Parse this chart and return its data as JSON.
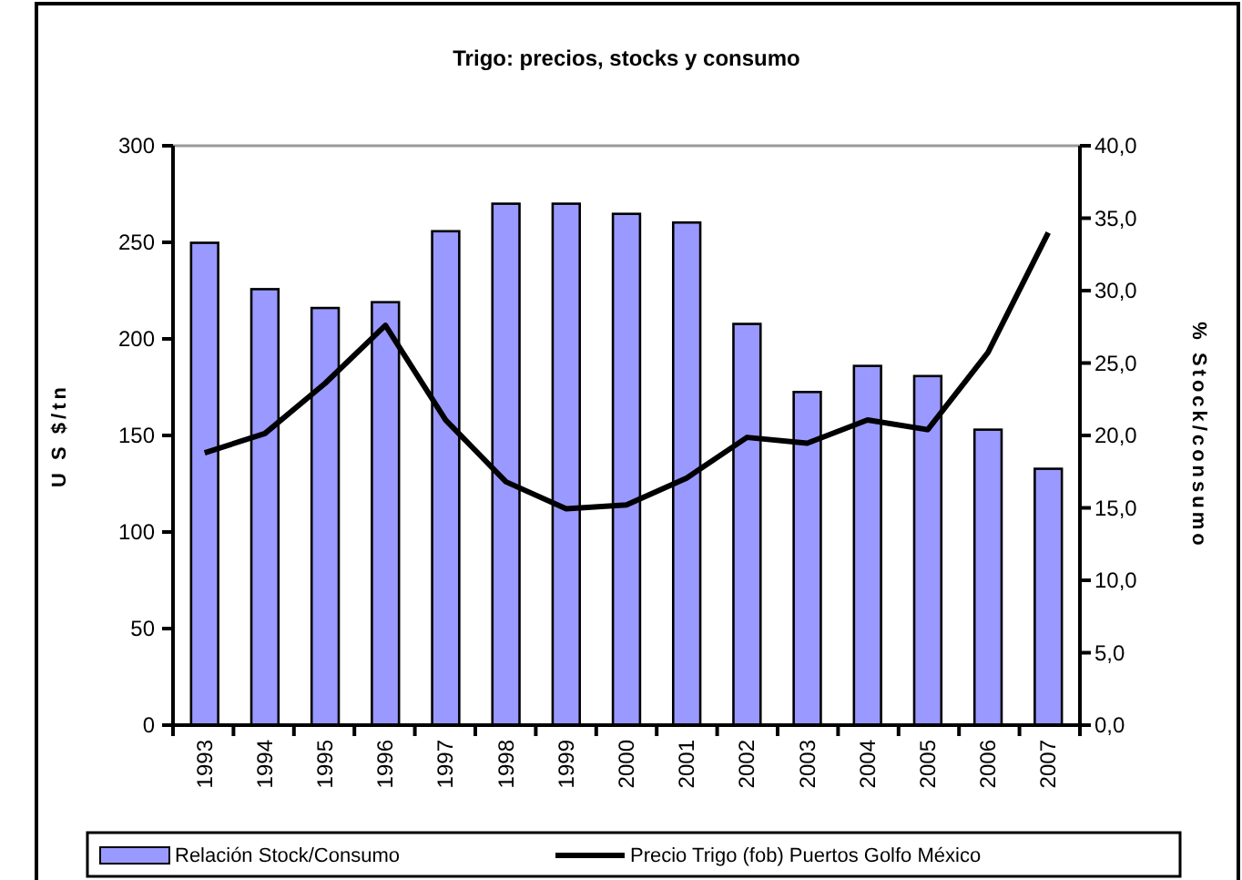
{
  "chart_data": {
    "type": "bar",
    "title": "Trigo: precios, stocks y consumo",
    "ylabel": "U S $/tn",
    "y2label": "% Stock/consumo",
    "categories": [
      "1993",
      "1994",
      "1995",
      "1996",
      "1997",
      "1998",
      "1999",
      "2000",
      "2001",
      "2002",
      "2003",
      "2004",
      "2005",
      "2006",
      "2007"
    ],
    "series": [
      {
        "name": "Relación Stock/Consumo",
        "axis": "y2",
        "color": "#9999ff",
        "values": [
          33.3,
          30.1,
          28.8,
          29.2,
          34.1,
          36.0,
          36.0,
          35.3,
          34.7,
          27.7,
          23.0,
          24.8,
          24.1,
          20.4,
          17.7
        ]
      },
      {
        "name": "Precio Trigo (fob) Puertos Golfo México",
        "type": "line",
        "color": "#000000",
        "values": [
          141,
          151,
          177,
          207,
          158,
          126,
          112,
          114,
          128,
          149,
          146,
          158,
          153,
          193,
          255
        ]
      }
    ],
    "ylim": [
      0,
      300
    ],
    "yticks": [
      0,
      50,
      100,
      150,
      200,
      250,
      300
    ],
    "y2lim": [
      0,
      40
    ],
    "y2ticks": [
      {
        "value": 0,
        "label": "0,0"
      },
      {
        "value": 5,
        "label": "5,0"
      },
      {
        "value": 10,
        "label": "10,0"
      },
      {
        "value": 15,
        "label": "15,0"
      },
      {
        "value": 20,
        "label": "20,0"
      },
      {
        "value": 25,
        "label": "25,0"
      },
      {
        "value": 30,
        "label": "30,0"
      },
      {
        "value": 35,
        "label": "35,0"
      },
      {
        "value": 40,
        "label": "40,0"
      }
    ],
    "legend": "bottom",
    "grid": false
  }
}
